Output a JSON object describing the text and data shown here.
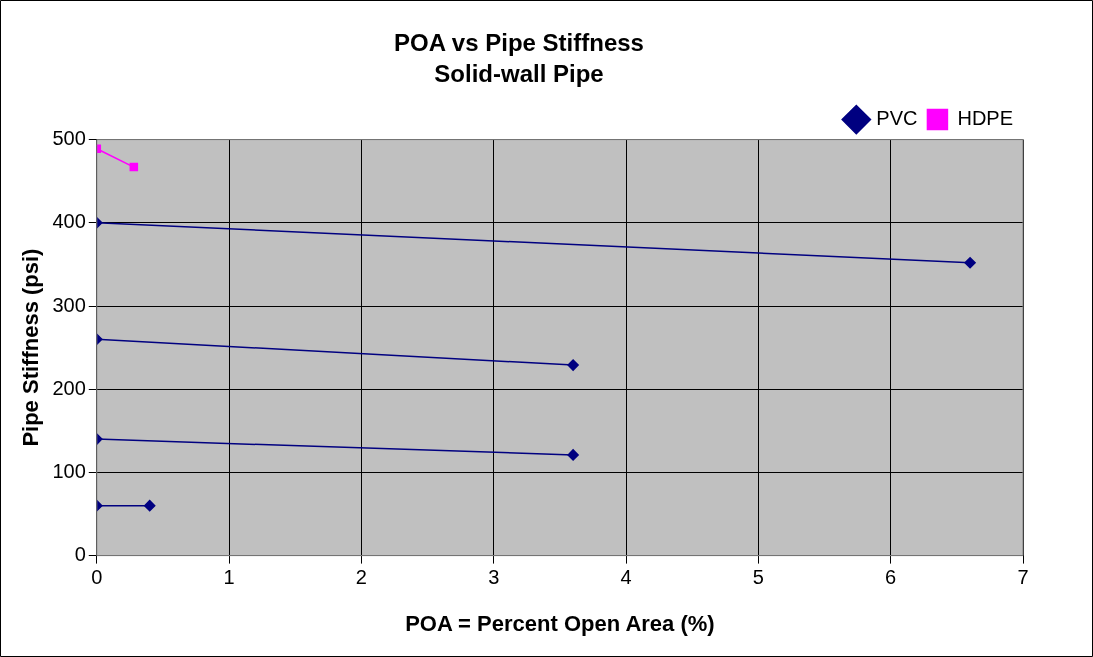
{
  "chart_data": {
    "type": "line",
    "title": "POA vs Pipe Stiffness",
    "subtitle": "Solid-wall Pipe",
    "xlabel": "POA = Percent Open Area (%)",
    "ylabel": "Pipe Stiffness (psi)",
    "series": [
      {
        "name": "PVC",
        "color": "#000080",
        "x": [
          0,
          6.6
        ],
        "values": [
          400,
          352
        ],
        "marker": "diamond"
      },
      {
        "color": "#000080",
        "x": [
          0,
          3.6
        ],
        "values": [
          260,
          229
        ],
        "marker": "diamond"
      },
      {
        "color": "#000080",
        "x": [
          0,
          3.6
        ],
        "values": [
          140,
          121
        ],
        "marker": "diamond"
      },
      {
        "color": "#000080",
        "x": [
          0,
          0.4
        ],
        "values": [
          60,
          60
        ],
        "marker": "diamond"
      },
      {
        "name": "HDPE",
        "color": "#ff00ff",
        "x": [
          0,
          0.28
        ],
        "values": [
          489,
          467
        ],
        "marker": "square"
      }
    ],
    "xlim": [
      0,
      7
    ],
    "xticks": [
      0,
      1,
      2,
      3,
      4,
      5,
      6,
      7
    ],
    "ylim": [
      0,
      500
    ],
    "yticks": [
      0,
      100,
      200,
      300,
      400,
      500
    ],
    "grid": true,
    "legend": "top right"
  }
}
